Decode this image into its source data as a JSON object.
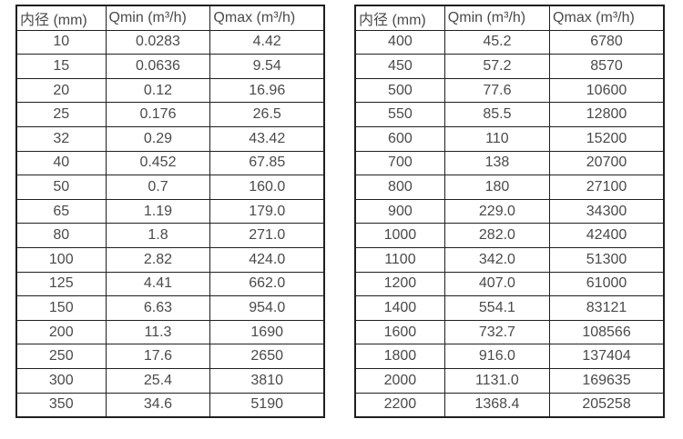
{
  "page": {
    "background": "#ffffff",
    "border_color": "#1f1f1f",
    "text_color": "#4a4a4a"
  },
  "tables": [
    {
      "name": "flow-spec-small-diameters",
      "headers": [
        "内径 (mm)",
        "Qmin (m³/h)",
        "Qmax (m³/h)"
      ],
      "rows": [
        [
          "10",
          "0.0283",
          "4.42"
        ],
        [
          "15",
          "0.0636",
          "9.54"
        ],
        [
          "20",
          "0.12",
          "16.96"
        ],
        [
          "25",
          "0.176",
          "26.5"
        ],
        [
          "32",
          "0.29",
          "43.42"
        ],
        [
          "40",
          "0.452",
          "67.85"
        ],
        [
          "50",
          "0.7",
          "160.0"
        ],
        [
          "65",
          "1.19",
          "179.0"
        ],
        [
          "80",
          "1.8",
          "271.0"
        ],
        [
          "100",
          "2.82",
          "424.0"
        ],
        [
          "125",
          "4.41",
          "662.0"
        ],
        [
          "150",
          "6.63",
          "954.0"
        ],
        [
          "200",
          "11.3",
          "1690"
        ],
        [
          "250",
          "17.6",
          "2650"
        ],
        [
          "300",
          "25.4",
          "3810"
        ],
        [
          "350",
          "34.6",
          "5190"
        ]
      ]
    },
    {
      "name": "flow-spec-large-diameters",
      "headers": [
        "内径 (mm)",
        "Qmin (m³/h)",
        "Qmax (m³/h)"
      ],
      "rows": [
        [
          "400",
          "45.2",
          "6780"
        ],
        [
          "450",
          "57.2",
          "8570"
        ],
        [
          "500",
          "77.6",
          "10600"
        ],
        [
          "550",
          "85.5",
          "12800"
        ],
        [
          "600",
          "110",
          "15200"
        ],
        [
          "700",
          "138",
          "20700"
        ],
        [
          "800",
          "180",
          "27100"
        ],
        [
          "900",
          "229.0",
          "34300"
        ],
        [
          "1000",
          "282.0",
          "42400"
        ],
        [
          "1100",
          "342.0",
          "51300"
        ],
        [
          "1200",
          "407.0",
          "61000"
        ],
        [
          "1400",
          "554.1",
          "83121"
        ],
        [
          "1600",
          "732.7",
          "108566"
        ],
        [
          "1800",
          "916.0",
          "137404"
        ],
        [
          "2000",
          "1131.0",
          "169635"
        ],
        [
          "2200",
          "1368.4",
          "205258"
        ]
      ]
    }
  ]
}
